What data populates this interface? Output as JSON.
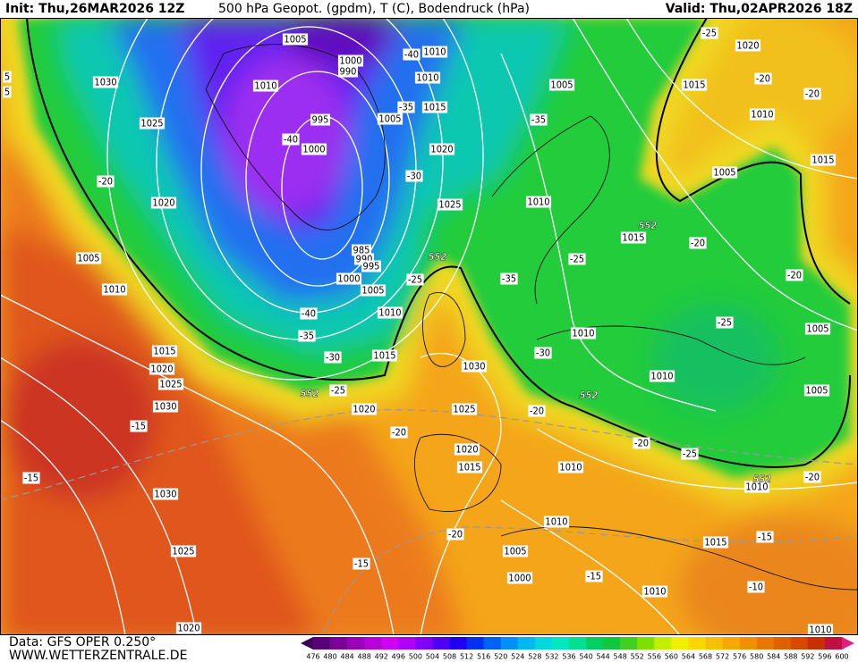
{
  "header": {
    "init": "Init: Thu,26MAR2026 12Z",
    "title": "500 hPa Geopot. (gpdm), T (C), Bodendruck (hPa)",
    "valid": "Valid: Thu,02APR2026 18Z"
  },
  "footer": {
    "data": "Data: GFS OPER 0.250°",
    "site": "WWW.WETTERZENTRALE.DE"
  },
  "colorbar": {
    "labels": [
      476,
      480,
      484,
      488,
      492,
      496,
      500,
      504,
      508,
      512,
      516,
      520,
      524,
      528,
      532,
      536,
      540,
      544,
      548,
      552,
      556,
      560,
      564,
      568,
      572,
      576,
      580,
      584,
      588,
      592,
      596,
      600
    ],
    "colors": [
      "#3c0058",
      "#5a0078",
      "#7a0098",
      "#9a00b8",
      "#b800d8",
      "#d000f0",
      "#b000f8",
      "#8000f8",
      "#5000f0",
      "#2000f0",
      "#0030f0",
      "#0060f8",
      "#0090f8",
      "#00b8f0",
      "#00d8e0",
      "#00e8c0",
      "#00e090",
      "#00d060",
      "#10c840",
      "#40d020",
      "#80e000",
      "#c0f000",
      "#f0f000",
      "#f8d800",
      "#f8c000",
      "#f8a800",
      "#f09000",
      "#e87800",
      "#e06000",
      "#d84800",
      "#c83000",
      "#c01040",
      "#e02080"
    ]
  },
  "map": {
    "isobar_labels": [
      1005,
      1000,
      990,
      1010,
      1010,
      1030,
      1010,
      1015,
      1005,
      995,
      1025,
      1000,
      1020,
      1005,
      1020,
      1015,
      1010,
      1015,
      1005,
      1010,
      1025,
      1020,
      1015,
      985,
      990,
      995,
      1005,
      1000,
      1005,
      1010,
      1010,
      1010,
      1015,
      1015,
      1030,
      1020,
      1025,
      1010,
      1005,
      1005,
      1030,
      1020,
      1025,
      1020,
      1015,
      1010,
      1010,
      1030,
      1010,
      1015,
      1025,
      1005,
      1000,
      1010,
      1020,
      1010,
      5,
      5
    ],
    "temperature_labels": [
      -40,
      -35,
      -40,
      -35,
      -30,
      -20,
      -25,
      -35,
      -25,
      -20,
      -20,
      -40,
      -35,
      -30,
      -25,
      -30,
      -25,
      -20,
      -20,
      -20,
      -25,
      -15,
      -15,
      -20,
      -25,
      -20,
      -20,
      -20,
      -15,
      -15,
      -15,
      -10
    ],
    "geopotential_labels": [
      552,
      552,
      552,
      552,
      552
    ]
  }
}
